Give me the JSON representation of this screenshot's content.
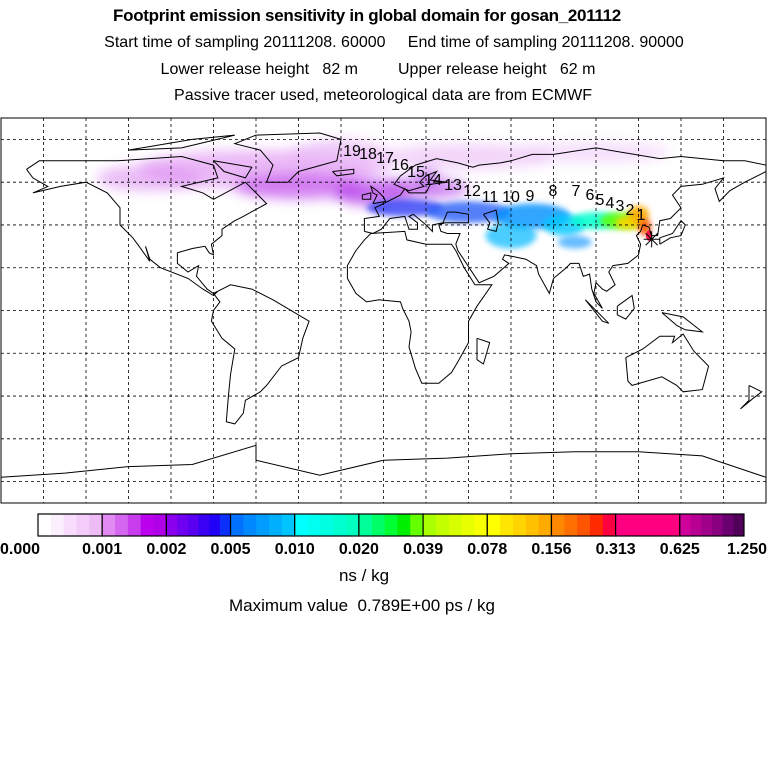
{
  "header": {
    "title": "Footprint emission sensitivity in global domain for gosan_201112",
    "sampling_line": "Start time of sampling 20111208. 60000     End time of sampling 20111208. 90000",
    "release_line": "Lower release height   82 m         Upper release height   62 m",
    "tracer_line": "Passive tracer used, meteorological data are from ECMWF"
  },
  "map": {
    "station": "gosan",
    "station_lon": 126.2,
    "station_lat": 33.3,
    "trajectory_labels": [
      "1",
      "2",
      "3",
      "4",
      "5",
      "6",
      "7",
      "8",
      "9",
      "10",
      "11",
      "12",
      "13",
      "14",
      "15",
      "16",
      "17",
      "18",
      "19"
    ]
  },
  "colorbar": {
    "tick_labels": [
      "0.000",
      "0.001",
      "0.002",
      "0.005",
      "0.010",
      "0.020",
      "0.039",
      "0.078",
      "0.156",
      "0.313",
      "0.625",
      "1.250"
    ],
    "groups": [
      [
        "#ffffff",
        "#fbeefd",
        "#f7ddfb",
        "#f3ccf9",
        "#efbbf7"
      ],
      [
        "#e08af2",
        "#d466f0",
        "#c83cee",
        "#bb00ee",
        "#b000e8"
      ],
      [
        "#8a00ee",
        "#7000f0",
        "#5a00f2",
        "#3a00f4",
        "#2000f6",
        "#0a30fa"
      ],
      [
        "#0070ff",
        "#0088ff",
        "#009cff",
        "#00b0ff",
        "#00c4ff"
      ],
      [
        "#00ffff",
        "#00fff0",
        "#00ffe0",
        "#00ffd0",
        "#00ffc0"
      ],
      [
        "#00ff99",
        "#00ff66",
        "#00ff33",
        "#00ee00",
        "#66ff00"
      ],
      [
        "#aaff00",
        "#c4ff00",
        "#d8ff00",
        "#e8ff00",
        "#f8ff00"
      ],
      [
        "#ffff00",
        "#ffe600",
        "#ffd400",
        "#ffc000",
        "#ffaa00"
      ],
      [
        "#ff8800",
        "#ff7000",
        "#ff5500",
        "#ff2a00",
        "#ff0040"
      ],
      [
        "#ff0080",
        "#ff0080",
        "#ff0080",
        "#ff0080",
        "#ff0080"
      ],
      [
        "#d0009a",
        "#b80092",
        "#a0008a",
        "#880080",
        "#6a0070",
        "#500058"
      ]
    ],
    "units": "ns / kg",
    "max_value_label": "Maximum value  0.789E+00 ps / kg"
  }
}
